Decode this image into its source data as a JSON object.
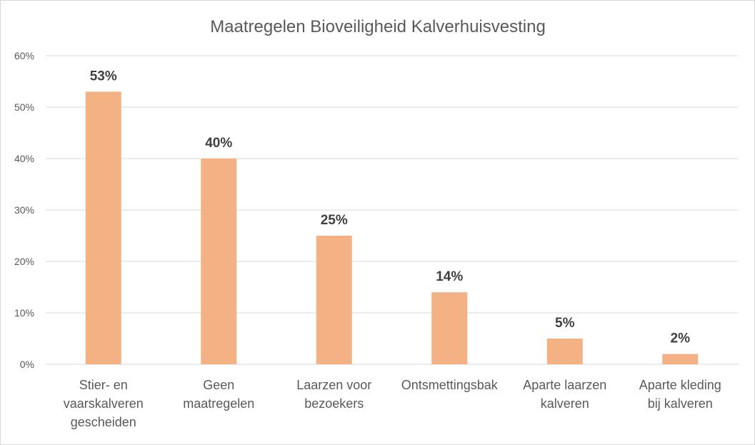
{
  "chart_data": {
    "type": "bar",
    "title": "Maatregelen Bioveiligheid Kalverhuisvesting",
    "categories": [
      [
        "Stier- en",
        "vaarskalveren",
        "gescheiden"
      ],
      [
        "Geen",
        "maatregelen"
      ],
      [
        "Laarzen voor",
        "bezoekers"
      ],
      [
        "Ontsmettingsbak"
      ],
      [
        "Aparte laarzen",
        "kalveren"
      ],
      [
        "Aparte kleding",
        "bij kalveren"
      ]
    ],
    "values": [
      53,
      40,
      25,
      14,
      5,
      2
    ],
    "data_labels": [
      "53%",
      "40%",
      "25%",
      "14%",
      "5%",
      "2%"
    ],
    "y_ticks": [
      "0%",
      "10%",
      "20%",
      "30%",
      "40%",
      "50%",
      "60%"
    ],
    "ylim": [
      0,
      60
    ],
    "grid": true,
    "legend": "none",
    "bar_color": "#F4B183",
    "grid_color": "#d9d9d9"
  }
}
